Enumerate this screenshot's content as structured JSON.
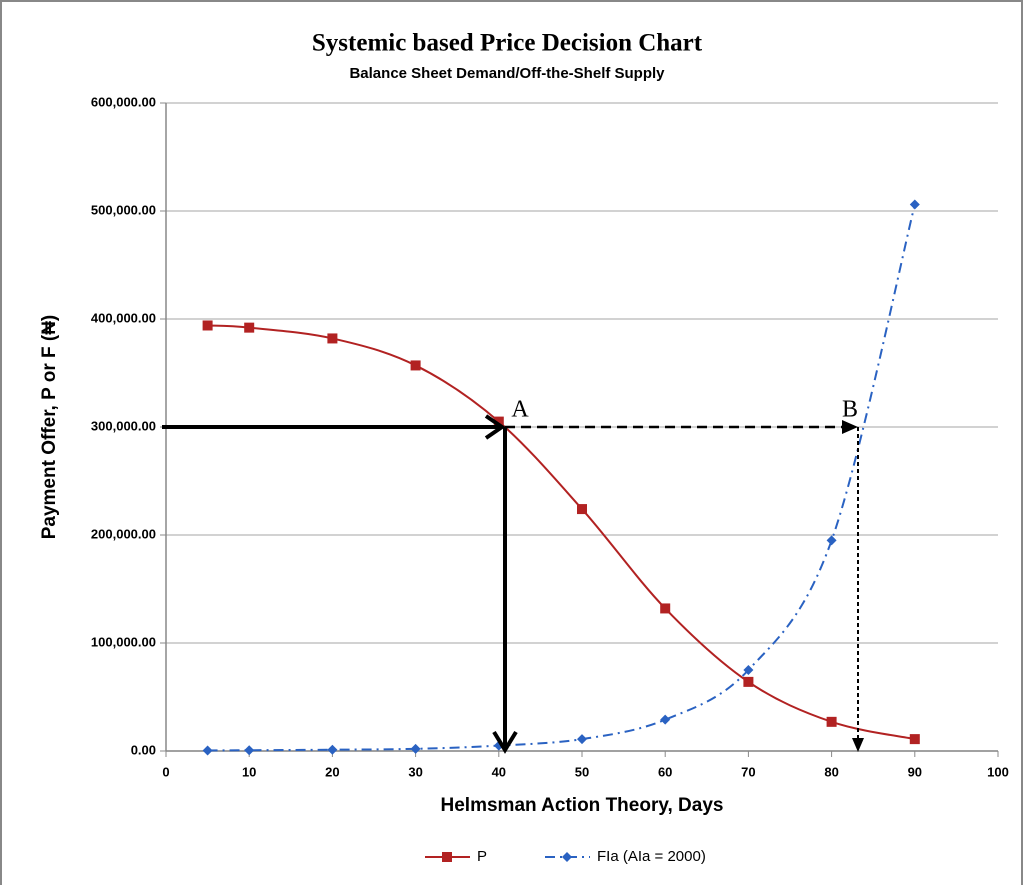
{
  "chart_data": {
    "type": "line",
    "title": "Systemic based Price Decision Chart",
    "subtitle": "Balance Sheet Demand/Off-the-Shelf Supply",
    "xlabel": "Helmsman Action Theory, Days",
    "ylabel": "Payment Offer, P or F (₦)",
    "x": [
      5,
      10,
      20,
      30,
      40,
      50,
      60,
      70,
      80,
      90
    ],
    "series": [
      {
        "name": "P",
        "color": "#b22222",
        "marker": "square",
        "dash": "solid",
        "values": [
          394000,
          392000,
          382000,
          357000,
          305000,
          224000,
          132000,
          64000,
          27000,
          11000
        ]
      },
      {
        "name": "FIa (AIa = 2000)",
        "color": "#2a62c2",
        "marker": "diamond",
        "dash": "dashdot",
        "values": [
          500,
          700,
          1200,
          2000,
          5000,
          11000,
          29000,
          75000,
          195000,
          506000
        ]
      }
    ],
    "xlim": [
      0,
      100
    ],
    "xticks": [
      0,
      10,
      20,
      30,
      40,
      50,
      60,
      70,
      80,
      90,
      100
    ],
    "ylim": [
      0,
      600000
    ],
    "yticks": [
      {
        "value": 0,
        "label": "0.00"
      },
      {
        "value": 100000,
        "label": "100,000.00"
      },
      {
        "value": 200000,
        "label": "200,000.00"
      },
      {
        "value": 300000,
        "label": "300,000.00"
      },
      {
        "value": 400000,
        "label": "400,000.00"
      },
      {
        "value": 500000,
        "label": "500,000.00"
      },
      {
        "value": 600000,
        "label": "600,000.00"
      }
    ],
    "grid": true,
    "legend": "bottom",
    "annotations": [
      "A",
      "B"
    ]
  }
}
